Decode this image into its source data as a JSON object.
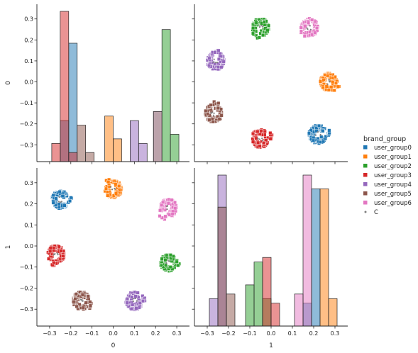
{
  "chart_data": {
    "type": "pairplot",
    "variables": [
      "0",
      "1"
    ],
    "axis_ticks": [
      -0.3,
      -0.2,
      -0.1,
      0.0,
      0.1,
      0.2,
      0.3
    ],
    "axis_tick_labels": [
      "−0.3",
      "−0.2",
      "−0.1",
      "0.0",
      "0.1",
      "0.2",
      "0.3"
    ],
    "x_range": [
      -0.36,
      0.36
    ],
    "y_range": [
      -0.38,
      0.37
    ],
    "legend": {
      "title": "brand_group",
      "placement": "right",
      "entries": [
        {
          "name": "user_group0",
          "color": "#1f77b4",
          "marker": "square"
        },
        {
          "name": "user_group1",
          "color": "#ff7f0e",
          "marker": "square"
        },
        {
          "name": "user_group2",
          "color": "#2ca02c",
          "marker": "square"
        },
        {
          "name": "user_group3",
          "color": "#d62728",
          "marker": "square"
        },
        {
          "name": "user_group4",
          "color": "#9467bd",
          "marker": "square"
        },
        {
          "name": "user_group5",
          "color": "#8c564b",
          "marker": "square"
        },
        {
          "name": "user_group6",
          "color": "#e377c2",
          "marker": "square"
        },
        {
          "name": "C",
          "color": "#7f7f7f",
          "marker": "dot"
        }
      ]
    },
    "hist_0": {
      "max_value": 0.33,
      "bars": [
        {
          "group": "user_group0",
          "x0": -0.21,
          "x1": -0.17,
          "value": 0.26
        },
        {
          "group": "user_group0",
          "x0": -0.25,
          "x1": -0.21,
          "value": 0.09
        },
        {
          "group": "user_group1",
          "x0": -0.04,
          "x1": 0.0,
          "value": 0.1
        },
        {
          "group": "user_group1",
          "x0": 0.0,
          "x1": 0.04,
          "value": 0.05
        },
        {
          "group": "user_group1",
          "x0": -0.08,
          "x1": -0.04,
          "value": 0.0
        },
        {
          "group": "user_group2",
          "x0": 0.23,
          "x1": 0.27,
          "value": 0.29
        },
        {
          "group": "user_group2",
          "x0": 0.19,
          "x1": 0.23,
          "value": 0.11
        },
        {
          "group": "user_group2",
          "x0": 0.27,
          "x1": 0.31,
          "value": 0.06
        },
        {
          "group": "user_group3",
          "x0": -0.25,
          "x1": -0.21,
          "value": 0.33
        },
        {
          "group": "user_group3",
          "x0": -0.29,
          "x1": -0.25,
          "value": 0.04
        },
        {
          "group": "user_group3",
          "x0": -0.21,
          "x1": -0.17,
          "value": 0.02
        },
        {
          "group": "user_group4",
          "x0": 0.08,
          "x1": 0.12,
          "value": 0.09
        },
        {
          "group": "user_group4",
          "x0": 0.04,
          "x1": 0.08,
          "value": 0.0
        },
        {
          "group": "user_group4",
          "x0": 0.12,
          "x1": 0.16,
          "value": 0.04
        },
        {
          "group": "user_group5",
          "x0": -0.17,
          "x1": -0.13,
          "value": 0.08
        },
        {
          "group": "user_group5",
          "x0": -0.13,
          "x1": -0.09,
          "value": 0.02
        },
        {
          "group": "user_group5",
          "x0": -0.09,
          "x1": -0.05,
          "value": 0.0
        },
        {
          "group": "user_group6",
          "x0": 0.19,
          "x1": 0.23,
          "value": 0.11
        },
        {
          "group": "user_group6",
          "x0": 0.31,
          "x1": 0.35,
          "value": 0.0
        }
      ]
    },
    "hist_1": {
      "max_value": 0.33,
      "bars": [
        {
          "group": "user_group0",
          "x0": 0.19,
          "x1": 0.23,
          "value": 0.3
        },
        {
          "group": "user_group0",
          "x0": 0.15,
          "x1": 0.19,
          "value": 0.05
        },
        {
          "group": "user_group1",
          "x0": 0.23,
          "x1": 0.27,
          "value": 0.3
        },
        {
          "group": "user_group1",
          "x0": 0.27,
          "x1": 0.31,
          "value": 0.06
        },
        {
          "group": "user_group2",
          "x0": -0.08,
          "x1": -0.04,
          "value": 0.14
        },
        {
          "group": "user_group2",
          "x0": -0.12,
          "x1": -0.08,
          "value": 0.09
        },
        {
          "group": "user_group2",
          "x0": -0.04,
          "x1": 0.0,
          "value": 0.06
        },
        {
          "group": "user_group3",
          "x0": -0.04,
          "x1": 0.0,
          "value": 0.15
        },
        {
          "group": "user_group3",
          "x0": 0.0,
          "x1": 0.04,
          "value": 0.05
        },
        {
          "group": "user_group4",
          "x0": -0.25,
          "x1": -0.21,
          "value": 0.33
        },
        {
          "group": "user_group4",
          "x0": -0.29,
          "x1": -0.25,
          "value": 0.06
        },
        {
          "group": "user_group5",
          "x0": -0.25,
          "x1": -0.21,
          "value": 0.26
        },
        {
          "group": "user_group5",
          "x0": -0.21,
          "x1": -0.17,
          "value": 0.07
        },
        {
          "group": "user_group6",
          "x0": 0.15,
          "x1": 0.19,
          "value": 0.33
        },
        {
          "group": "user_group6",
          "x0": 0.11,
          "x1": 0.15,
          "value": 0.07
        }
      ]
    },
    "scatter_clusters_upper": [
      {
        "group": "user_group0",
        "cx": 0.22,
        "cy": -0.25,
        "r": 0.042
      },
      {
        "group": "user_group1",
        "cx": 0.27,
        "cy": 0.0,
        "r": 0.04
      },
      {
        "group": "user_group2",
        "cx": -0.05,
        "cy": 0.26,
        "r": 0.04
      },
      {
        "group": "user_group3",
        "cx": -0.05,
        "cy": -0.27,
        "r": 0.042
      },
      {
        "group": "user_group4",
        "cx": -0.26,
        "cy": 0.1,
        "r": 0.04
      },
      {
        "group": "user_group5",
        "cx": -0.27,
        "cy": -0.15,
        "r": 0.04
      },
      {
        "group": "user_group6",
        "cx": 0.18,
        "cy": 0.26,
        "r": 0.04
      }
    ],
    "scatter_clusters_lower": [
      {
        "group": "user_group0",
        "cx": -0.25,
        "cy": 0.22,
        "r": 0.04
      },
      {
        "group": "user_group1",
        "cx": 0.0,
        "cy": 0.27,
        "r": 0.04
      },
      {
        "group": "user_group2",
        "cx": 0.26,
        "cy": -0.08,
        "r": 0.038
      },
      {
        "group": "user_group3",
        "cx": -0.27,
        "cy": -0.04,
        "r": 0.04
      },
      {
        "group": "user_group4",
        "cx": 0.1,
        "cy": -0.26,
        "r": 0.04
      },
      {
        "group": "user_group5",
        "cx": -0.15,
        "cy": -0.26,
        "r": 0.04
      },
      {
        "group": "user_group6",
        "cx": 0.26,
        "cy": 0.18,
        "r": 0.04
      }
    ]
  }
}
